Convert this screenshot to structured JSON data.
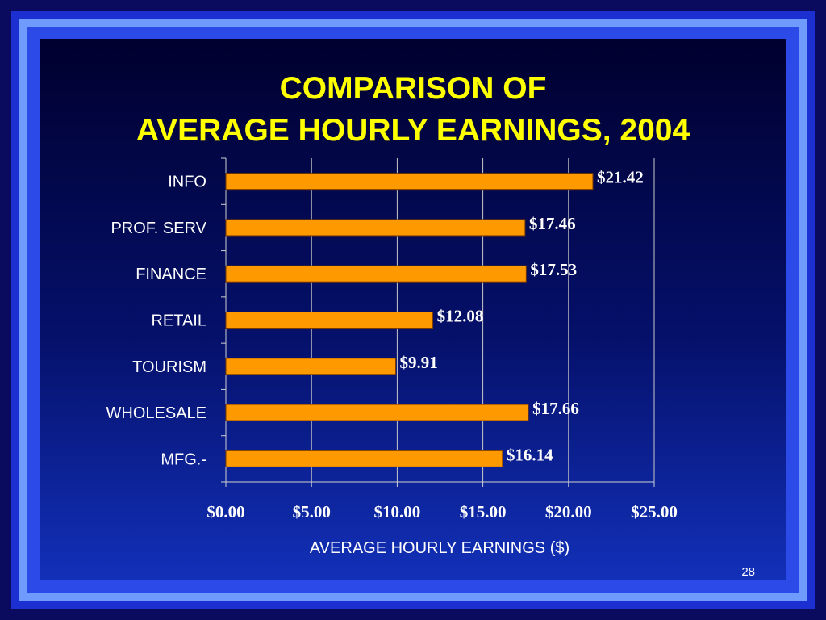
{
  "slide": {
    "title_line1": "COMPARISON OF",
    "title_line2": "AVERAGE HOURLY EARNINGS, 2004",
    "page_number": "28",
    "colors": {
      "bar": "#ff9900",
      "bar_edge": "#7a3b00",
      "title": "#ffff00",
      "text": "#ffffff"
    }
  },
  "chart_data": {
    "type": "bar",
    "orientation": "horizontal",
    "categories": [
      "INFO",
      "PROF. SERV",
      "FINANCE",
      "RETAIL",
      "TOURISM",
      "WHOLESALE",
      "MFG.-"
    ],
    "values": [
      21.42,
      17.46,
      17.53,
      12.08,
      9.91,
      17.66,
      16.14
    ],
    "data_labels": [
      "$21.42",
      "$17.46",
      "$17.53",
      "$12.08",
      "$9.91",
      "$17.66",
      "$16.14"
    ],
    "xlabel": "AVERAGE HOURLY EARNINGS ($)",
    "xlim": [
      0,
      25
    ],
    "x_ticks": [
      0,
      5,
      10,
      15,
      20,
      25
    ],
    "x_tick_labels": [
      "$0.00",
      "$5.00",
      "$10.00",
      "$15.00",
      "$20.00",
      "$25.00"
    ],
    "grid": "vertical",
    "legend": "none"
  }
}
